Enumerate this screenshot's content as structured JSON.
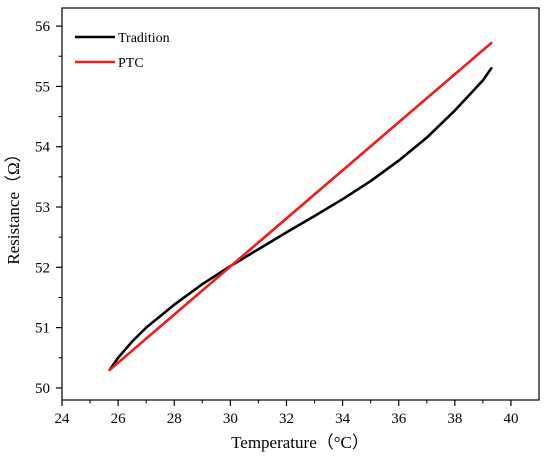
{
  "chart_data": {
    "type": "line",
    "xlabel": "Temperature（°C）",
    "ylabel": "Resistance（Ω）",
    "xlim": [
      24,
      41
    ],
    "ylim": [
      49.8,
      56.3
    ],
    "xticks": [
      24,
      26,
      28,
      30,
      32,
      34,
      36,
      38,
      40
    ],
    "yticks": [
      50,
      51,
      52,
      53,
      54,
      55,
      56
    ],
    "x_tick_labels": [
      "24",
      "26",
      "28",
      "30",
      "32",
      "34",
      "36",
      "38",
      "40"
    ],
    "y_tick_labels": [
      "50",
      "51",
      "52",
      "53",
      "54",
      "55",
      "56"
    ],
    "grid": false,
    "legend_position": "top-left",
    "series": [
      {
        "name": "Tradition",
        "color": "#000000",
        "x": [
          25.7,
          26.0,
          26.5,
          27.0,
          28.0,
          29.0,
          30.0,
          31.0,
          32.0,
          33.0,
          34.0,
          35.0,
          36.0,
          37.0,
          38.0,
          38.5,
          39.0,
          39.3
        ],
        "y": [
          50.3,
          50.5,
          50.77,
          51.0,
          51.38,
          51.72,
          52.02,
          52.3,
          52.58,
          52.85,
          53.13,
          53.43,
          53.77,
          54.15,
          54.6,
          54.85,
          55.1,
          55.3
        ]
      },
      {
        "name": "PTC",
        "color": "#ee1c1c",
        "x": [
          25.7,
          39.3
        ],
        "y": [
          50.3,
          55.72
        ]
      }
    ]
  }
}
